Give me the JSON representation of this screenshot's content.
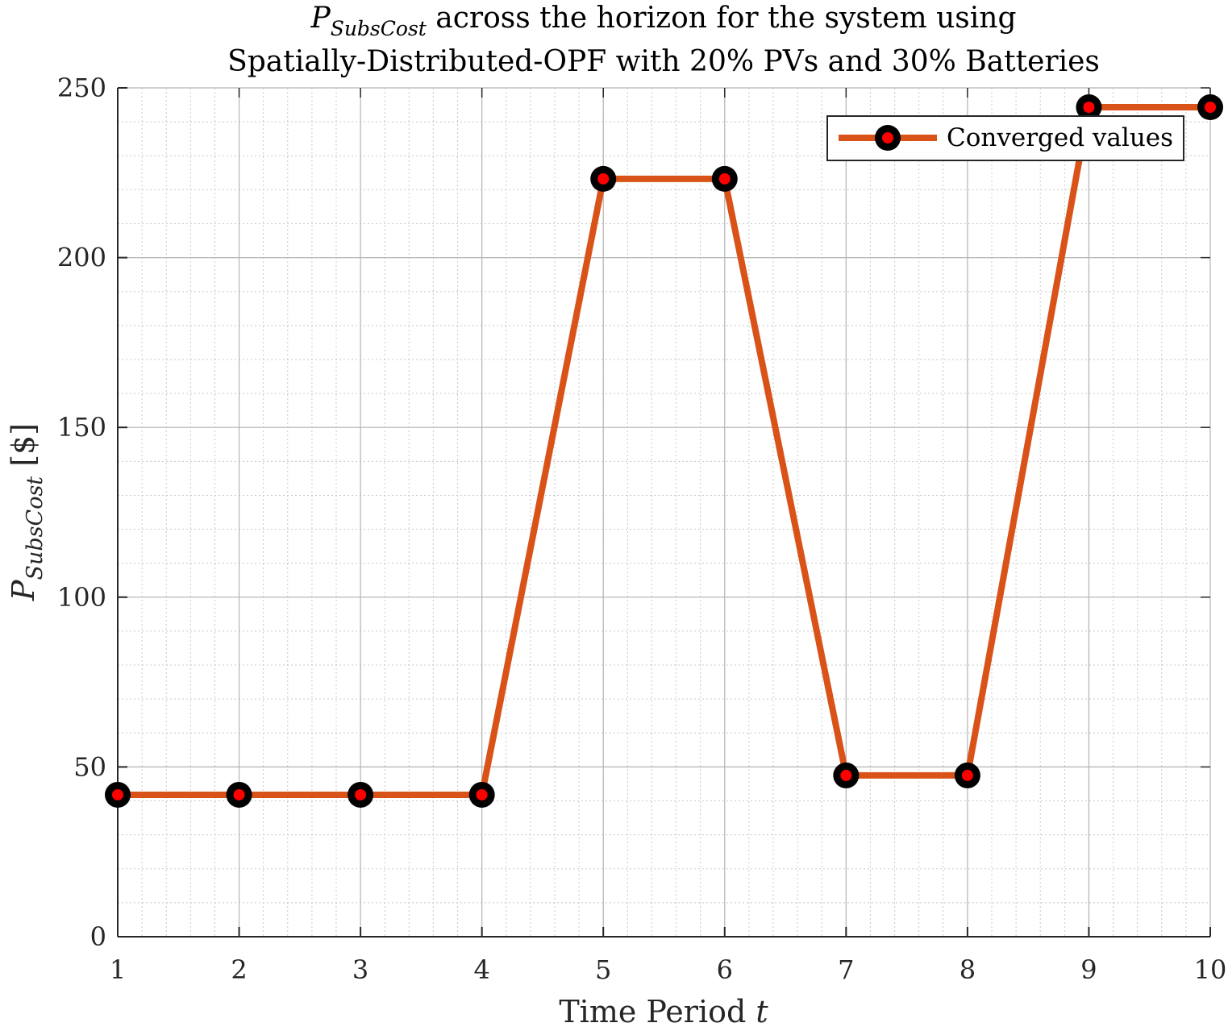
{
  "chart_data": {
    "type": "line",
    "title_symbol": "P",
    "title_subscript": "SubsCost",
    "title_line1_rest": " across the horizon for the system using",
    "title_line2": "Spatially-Distributed-OPF with 20% PVs and 30% Batteries",
    "xlabel_prefix": "Time Period ",
    "xlabel_var": "t",
    "ylabel_symbol": "P",
    "ylabel_subscript": "SubsCost",
    "ylabel_unit": " [$]",
    "x": [
      1,
      2,
      3,
      4,
      5,
      6,
      7,
      8,
      9,
      10
    ],
    "xlim": [
      1,
      10
    ],
    "ylim": [
      0,
      250
    ],
    "xticks": [
      1,
      2,
      3,
      4,
      5,
      6,
      7,
      8,
      9,
      10
    ],
    "yticks": [
      0,
      50,
      100,
      150,
      200,
      250
    ],
    "grid": true,
    "minor_grid": true,
    "legend_position": "top-right",
    "series": [
      {
        "name": "Converged values",
        "values": [
          41.8,
          41.8,
          41.8,
          41.8,
          223.2,
          223.2,
          47.5,
          47.5,
          244.3,
          244.3
        ],
        "line_color": "#D95319",
        "marker_edge_color": "#000000",
        "marker_face_color": "#FF0000"
      }
    ]
  }
}
